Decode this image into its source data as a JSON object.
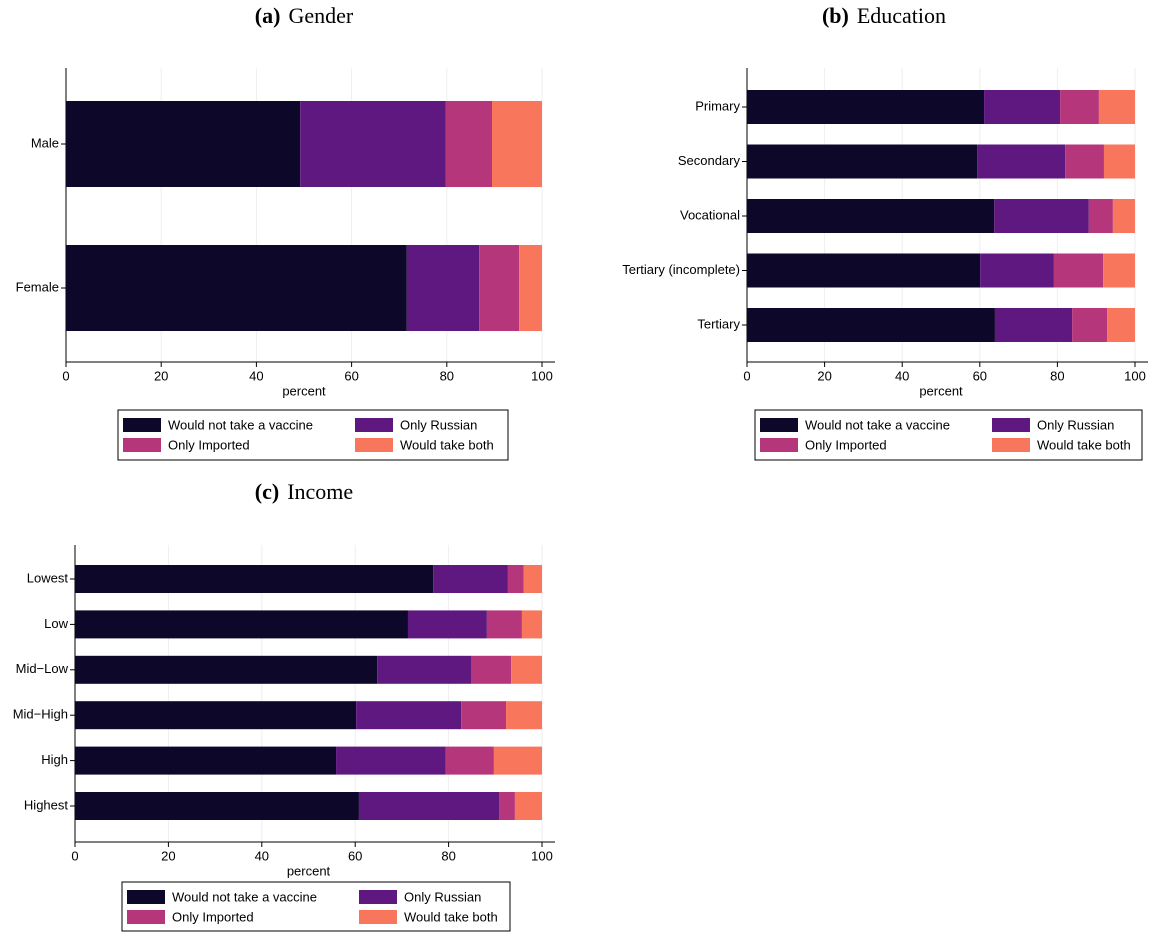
{
  "chart_data": [
    {
      "type": "hbar-stacked",
      "label": "(a)",
      "title": "Gender",
      "xlabel": "percent",
      "categories": [
        "Male",
        "Female"
      ],
      "series": [
        {
          "name": "Would not take a vaccine",
          "color": "#0d0829",
          "values": [
            49.2,
            71.6
          ]
        },
        {
          "name": "Only Russian",
          "color": "#5f187f",
          "values": [
            30.6,
            15.2
          ]
        },
        {
          "name": "Only Imported",
          "color": "#b5367a",
          "values": [
            9.7,
            8.4
          ]
        },
        {
          "name": "Would take both",
          "color": "#f8765c",
          "values": [
            10.5,
            4.8
          ]
        }
      ],
      "xlim": [
        0,
        100
      ],
      "xticks": [
        0,
        20,
        40,
        60,
        80,
        100
      ],
      "grid": true
    },
    {
      "type": "hbar-stacked",
      "label": "(b)",
      "title": "Education",
      "xlabel": "percent",
      "categories": [
        "Primary",
        "Secondary",
        "Vocational",
        "Tertiary (incomplete)",
        "Tertiary"
      ],
      "series": [
        {
          "name": "Would not take a vaccine",
          "color": "#0d0829",
          "values": [
            61.1,
            59.3,
            63.7,
            60.1,
            63.9
          ]
        },
        {
          "name": "Only Russian",
          "color": "#5f187f",
          "values": [
            19.6,
            22.7,
            24.4,
            19.0,
            19.9
          ]
        },
        {
          "name": "Only Imported",
          "color": "#b5367a",
          "values": [
            10.0,
            10.0,
            6.2,
            12.7,
            9.0
          ]
        },
        {
          "name": "Would take both",
          "color": "#f8765c",
          "values": [
            9.3,
            8.0,
            5.7,
            8.2,
            7.2
          ]
        }
      ],
      "xlim": [
        0,
        100
      ],
      "xticks": [
        0,
        20,
        40,
        60,
        80,
        100
      ],
      "grid": true
    },
    {
      "type": "hbar-stacked",
      "label": "(c)",
      "title": "Income",
      "xlabel": "percent",
      "categories": [
        "Lowest",
        "Low",
        "Mid−Low",
        "Mid−High",
        "High",
        "Highest"
      ],
      "series": [
        {
          "name": "Would not take a vaccine",
          "color": "#0d0829",
          "values": [
            76.7,
            71.3,
            64.7,
            60.2,
            55.9,
            60.8
          ]
        },
        {
          "name": "Only Russian",
          "color": "#5f187f",
          "values": [
            16.0,
            16.9,
            20.1,
            22.5,
            23.5,
            30.0
          ]
        },
        {
          "name": "Only Imported",
          "color": "#b5367a",
          "values": [
            3.4,
            7.5,
            8.6,
            9.6,
            10.3,
            3.4
          ]
        },
        {
          "name": "Would take both",
          "color": "#f8765c",
          "values": [
            3.9,
            4.3,
            6.6,
            7.7,
            10.3,
            5.8
          ]
        }
      ],
      "xlim": [
        0,
        100
      ],
      "xticks": [
        0,
        20,
        40,
        60,
        80,
        100
      ],
      "grid": true
    }
  ]
}
